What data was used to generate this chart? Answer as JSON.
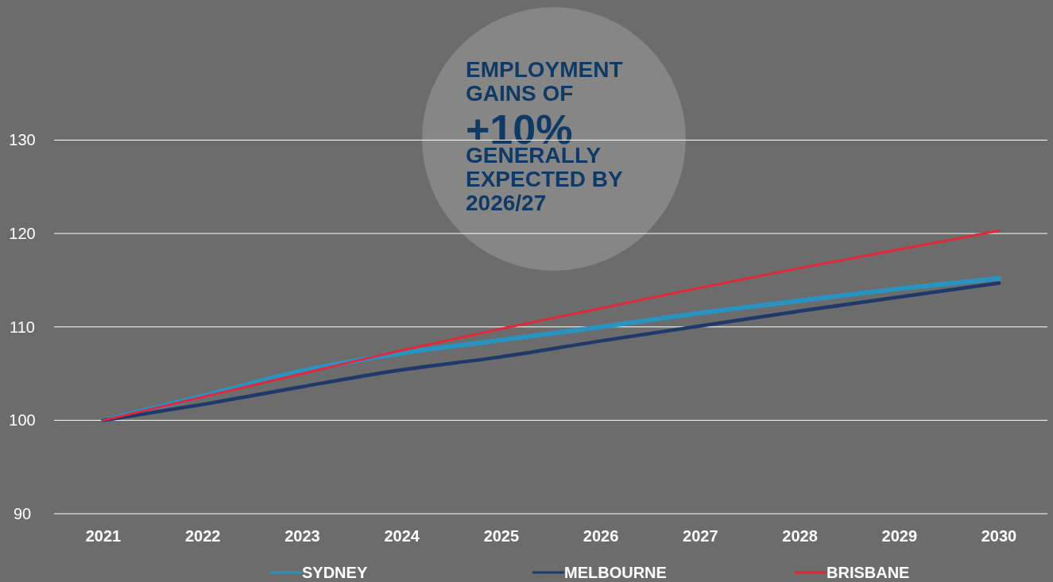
{
  "chart_data": {
    "type": "line",
    "categories": [
      "2021",
      "2022",
      "2023",
      "2024",
      "2025",
      "2026",
      "2027",
      "2028",
      "2029",
      "2030"
    ],
    "series": [
      {
        "name": "SYDNEY",
        "color": "#2b93c0",
        "values": [
          100,
          102.6,
          105.3,
          107.2,
          108.6,
          110.0,
          111.5,
          112.8,
          114.1,
          115.2
        ]
      },
      {
        "name": "MELBOURNE",
        "color": "#1f3a6a",
        "values": [
          100,
          101.7,
          103.6,
          105.4,
          106.8,
          108.5,
          110.1,
          111.7,
          113.2,
          114.7
        ]
      },
      {
        "name": "BRISBANE",
        "color": "#e3263a",
        "values": [
          100,
          102.5,
          105.0,
          107.5,
          109.8,
          112.0,
          114.2,
          116.3,
          118.3,
          120.3
        ]
      }
    ],
    "ylim": [
      90,
      145
    ],
    "yticks": [
      90,
      100,
      110,
      120,
      130
    ],
    "grid": "y",
    "legend": "bottom",
    "marker": "none",
    "line_style": "solid",
    "annotations": [
      "EMPLOYMENT GAINS OF",
      "+10%",
      "GENERALLY EXPECTED BY 2026/27"
    ]
  }
}
